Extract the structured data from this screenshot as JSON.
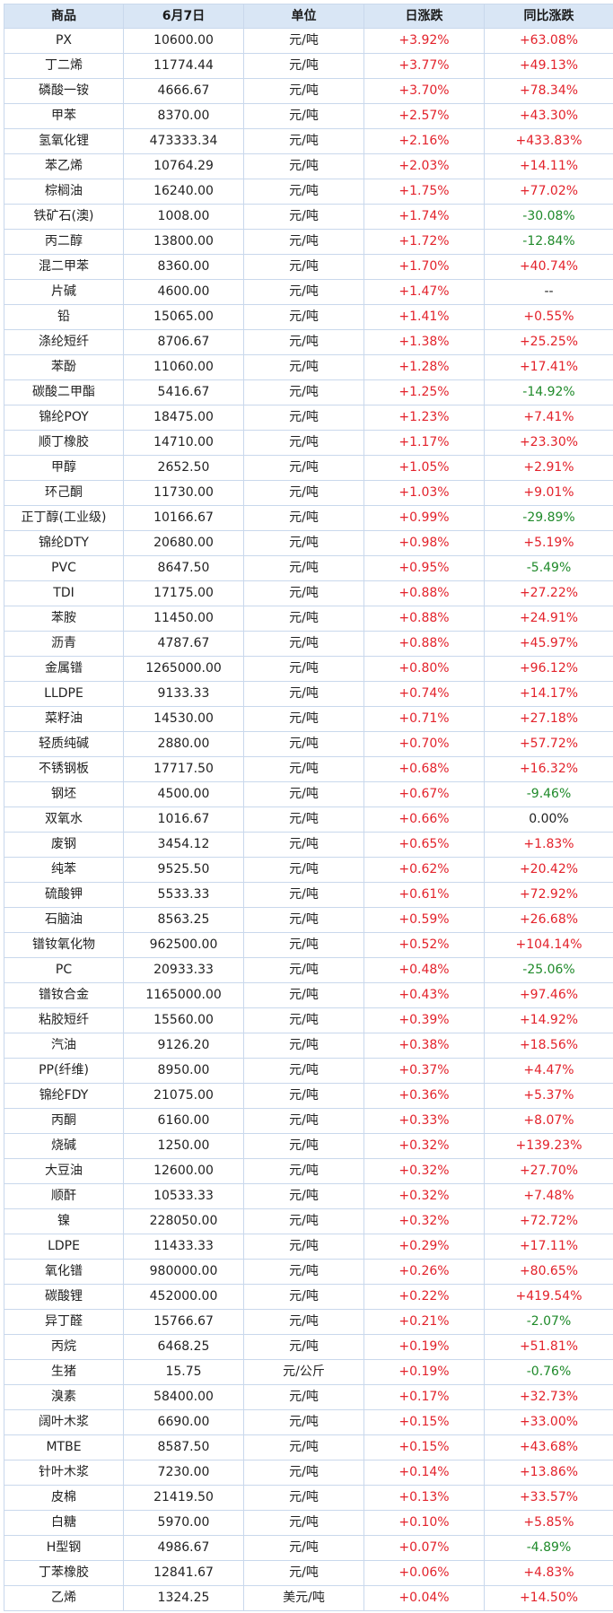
{
  "table": {
    "headers": [
      "商品",
      "6月7日",
      "单位",
      "日涨跌",
      "同比涨跌"
    ],
    "rows": [
      [
        "PX",
        "10600.00",
        "元/吨",
        "+3.92%",
        "+63.08%"
      ],
      [
        "丁二烯",
        "11774.44",
        "元/吨",
        "+3.77%",
        "+49.13%"
      ],
      [
        "磷酸一铵",
        "4666.67",
        "元/吨",
        "+3.70%",
        "+78.34%"
      ],
      [
        "甲苯",
        "8370.00",
        "元/吨",
        "+2.57%",
        "+43.30%"
      ],
      [
        "氢氧化锂",
        "473333.34",
        "元/吨",
        "+2.16%",
        "+433.83%"
      ],
      [
        "苯乙烯",
        "10764.29",
        "元/吨",
        "+2.03%",
        "+14.11%"
      ],
      [
        "棕榈油",
        "16240.00",
        "元/吨",
        "+1.75%",
        "+77.02%"
      ],
      [
        "铁矿石(澳)",
        "1008.00",
        "元/吨",
        "+1.74%",
        "-30.08%"
      ],
      [
        "丙二醇",
        "13800.00",
        "元/吨",
        "+1.72%",
        "-12.84%"
      ],
      [
        "混二甲苯",
        "8360.00",
        "元/吨",
        "+1.70%",
        "+40.74%"
      ],
      [
        "片碱",
        "4600.00",
        "元/吨",
        "+1.47%",
        "--"
      ],
      [
        "铅",
        "15065.00",
        "元/吨",
        "+1.41%",
        "+0.55%"
      ],
      [
        "涤纶短纤",
        "8706.67",
        "元/吨",
        "+1.38%",
        "+25.25%"
      ],
      [
        "苯酚",
        "11060.00",
        "元/吨",
        "+1.28%",
        "+17.41%"
      ],
      [
        "碳酸二甲酯",
        "5416.67",
        "元/吨",
        "+1.25%",
        "-14.92%"
      ],
      [
        "锦纶POY",
        "18475.00",
        "元/吨",
        "+1.23%",
        "+7.41%"
      ],
      [
        "顺丁橡胶",
        "14710.00",
        "元/吨",
        "+1.17%",
        "+23.30%"
      ],
      [
        "甲醇",
        "2652.50",
        "元/吨",
        "+1.05%",
        "+2.91%"
      ],
      [
        "环己酮",
        "11730.00",
        "元/吨",
        "+1.03%",
        "+9.01%"
      ],
      [
        "正丁醇(工业级)",
        "10166.67",
        "元/吨",
        "+0.99%",
        "-29.89%"
      ],
      [
        "锦纶DTY",
        "20680.00",
        "元/吨",
        "+0.98%",
        "+5.19%"
      ],
      [
        "PVC",
        "8647.50",
        "元/吨",
        "+0.95%",
        "-5.49%"
      ],
      [
        "TDI",
        "17175.00",
        "元/吨",
        "+0.88%",
        "+27.22%"
      ],
      [
        "苯胺",
        "11450.00",
        "元/吨",
        "+0.88%",
        "+24.91%"
      ],
      [
        "沥青",
        "4787.67",
        "元/吨",
        "+0.88%",
        "+45.97%"
      ],
      [
        "金属镨",
        "1265000.00",
        "元/吨",
        "+0.80%",
        "+96.12%"
      ],
      [
        "LLDPE",
        "9133.33",
        "元/吨",
        "+0.74%",
        "+14.17%"
      ],
      [
        "菜籽油",
        "14530.00",
        "元/吨",
        "+0.71%",
        "+27.18%"
      ],
      [
        "轻质纯碱",
        "2880.00",
        "元/吨",
        "+0.70%",
        "+57.72%"
      ],
      [
        "不锈钢板",
        "17717.50",
        "元/吨",
        "+0.68%",
        "+16.32%"
      ],
      [
        "钢坯",
        "4500.00",
        "元/吨",
        "+0.67%",
        "-9.46%"
      ],
      [
        "双氧水",
        "1016.67",
        "元/吨",
        "+0.66%",
        "0.00%"
      ],
      [
        "废钢",
        "3454.12",
        "元/吨",
        "+0.65%",
        "+1.83%"
      ],
      [
        "纯苯",
        "9525.50",
        "元/吨",
        "+0.62%",
        "+20.42%"
      ],
      [
        "硫酸钾",
        "5533.33",
        "元/吨",
        "+0.61%",
        "+72.92%"
      ],
      [
        "石脑油",
        "8563.25",
        "元/吨",
        "+0.59%",
        "+26.68%"
      ],
      [
        "镨钕氧化物",
        "962500.00",
        "元/吨",
        "+0.52%",
        "+104.14%"
      ],
      [
        "PC",
        "20933.33",
        "元/吨",
        "+0.48%",
        "-25.06%"
      ],
      [
        "镨钕合金",
        "1165000.00",
        "元/吨",
        "+0.43%",
        "+97.46%"
      ],
      [
        "粘胶短纤",
        "15560.00",
        "元/吨",
        "+0.39%",
        "+14.92%"
      ],
      [
        "汽油",
        "9126.20",
        "元/吨",
        "+0.38%",
        "+18.56%"
      ],
      [
        "PP(纤维)",
        "8950.00",
        "元/吨",
        "+0.37%",
        "+4.47%"
      ],
      [
        "锦纶FDY",
        "21075.00",
        "元/吨",
        "+0.36%",
        "+5.37%"
      ],
      [
        "丙酮",
        "6160.00",
        "元/吨",
        "+0.33%",
        "+8.07%"
      ],
      [
        "烧碱",
        "1250.00",
        "元/吨",
        "+0.32%",
        "+139.23%"
      ],
      [
        "大豆油",
        "12600.00",
        "元/吨",
        "+0.32%",
        "+27.70%"
      ],
      [
        "顺酐",
        "10533.33",
        "元/吨",
        "+0.32%",
        "+7.48%"
      ],
      [
        "镍",
        "228050.00",
        "元/吨",
        "+0.32%",
        "+72.72%"
      ],
      [
        "LDPE",
        "11433.33",
        "元/吨",
        "+0.29%",
        "+17.11%"
      ],
      [
        "氧化镨",
        "980000.00",
        "元/吨",
        "+0.26%",
        "+80.65%"
      ],
      [
        "碳酸锂",
        "452000.00",
        "元/吨",
        "+0.22%",
        "+419.54%"
      ],
      [
        "异丁醛",
        "15766.67",
        "元/吨",
        "+0.21%",
        "-2.07%"
      ],
      [
        "丙烷",
        "6468.25",
        "元/吨",
        "+0.19%",
        "+51.81%"
      ],
      [
        "生猪",
        "15.75",
        "元/公斤",
        "+0.19%",
        "-0.76%"
      ],
      [
        "溴素",
        "58400.00",
        "元/吨",
        "+0.17%",
        "+32.73%"
      ],
      [
        "阔叶木浆",
        "6690.00",
        "元/吨",
        "+0.15%",
        "+33.00%"
      ],
      [
        "MTBE",
        "8587.50",
        "元/吨",
        "+0.15%",
        "+43.68%"
      ],
      [
        "针叶木浆",
        "7230.00",
        "元/吨",
        "+0.14%",
        "+13.86%"
      ],
      [
        "皮棉",
        "21419.50",
        "元/吨",
        "+0.13%",
        "+33.57%"
      ],
      [
        "白糖",
        "5970.00",
        "元/吨",
        "+0.10%",
        "+5.85%"
      ],
      [
        "H型钢",
        "4986.67",
        "元/吨",
        "+0.07%",
        "-4.89%"
      ],
      [
        "丁苯橡胶",
        "12841.67",
        "元/吨",
        "+0.06%",
        "+4.83%"
      ],
      [
        "乙烯",
        "1324.25",
        "美元/吨",
        "+0.04%",
        "+14.50%"
      ]
    ]
  },
  "colors": {
    "up": "#e3222b",
    "down": "#1f8a2a",
    "header_bg": "#d9e6f5",
    "border": "#c9d8ec"
  }
}
